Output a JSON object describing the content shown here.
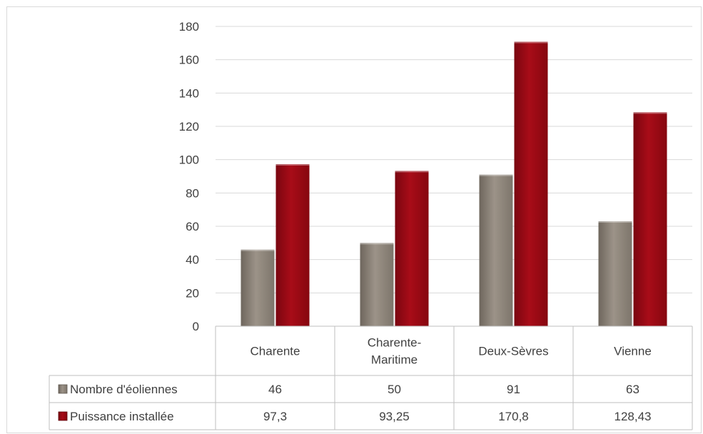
{
  "chart_data": {
    "type": "bar",
    "categories": [
      "Charente",
      "Charente-Maritime",
      "Deux-Sèvres",
      "Vienne"
    ],
    "category_lines": [
      [
        "Charente"
      ],
      [
        "Charente-",
        "Maritime"
      ],
      [
        "Deux-Sèvres"
      ],
      [
        "Vienne"
      ]
    ],
    "series": [
      {
        "name": "Nombre d'éoliennes",
        "values": [
          46,
          50,
          91,
          63
        ],
        "labels": [
          "46",
          "50",
          "91",
          "63"
        ],
        "color": "#8c8378"
      },
      {
        "name": "Puissance installée",
        "values": [
          97.3,
          93.25,
          170.8,
          128.43
        ],
        "labels": [
          "97,3",
          "93,25",
          "170,8",
          "128,43"
        ],
        "color": "#9a0a14"
      }
    ],
    "ylim": [
      0,
      180
    ],
    "yticks": [
      0,
      20,
      40,
      60,
      80,
      100,
      120,
      140,
      160,
      180
    ],
    "grid": true,
    "legend": "data table"
  }
}
